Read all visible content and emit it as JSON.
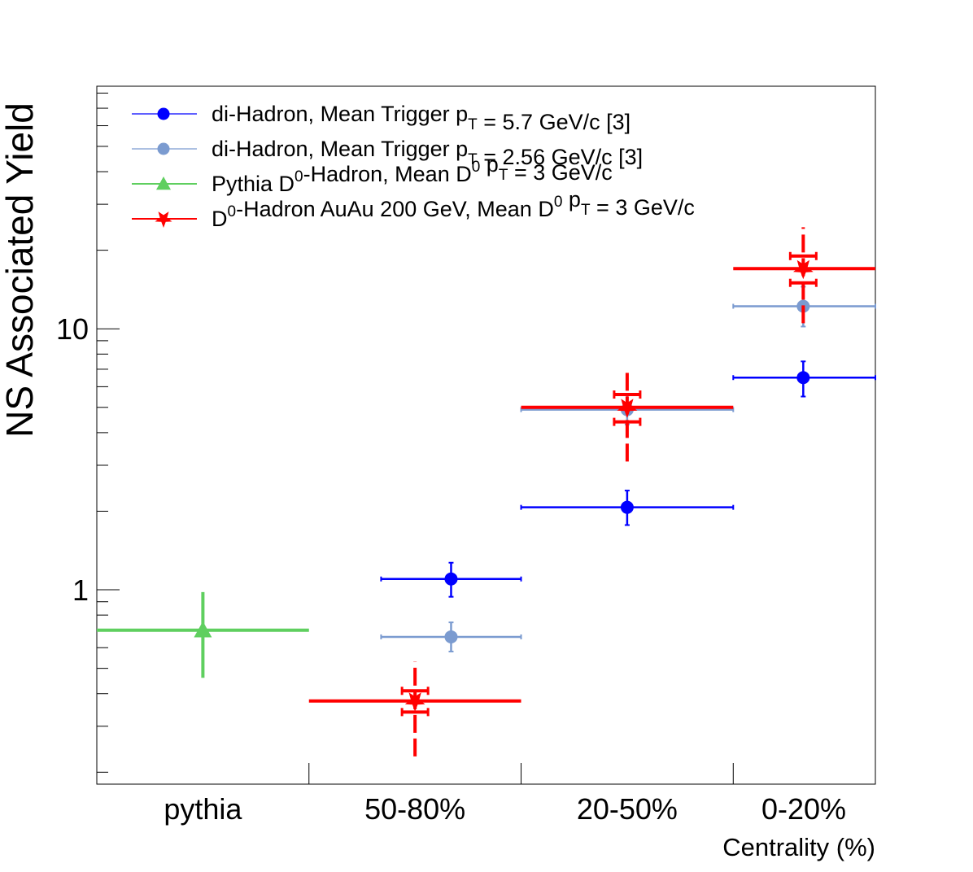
{
  "chart_data": {
    "type": "scatter",
    "title": "",
    "ylabel": "NS Associated Yield",
    "xlabel": "Centrality (%)",
    "yscale": "log",
    "ylim": [
      0.18,
      85
    ],
    "y_ticks": [
      {
        "value": 1,
        "label": "1"
      },
      {
        "value": 10,
        "label": "10"
      }
    ],
    "categories": [
      "pythia",
      "50-80%",
      "20-50%",
      "0-20%"
    ],
    "x_edges": [
      0,
      1,
      2,
      3,
      3.67
    ],
    "grid": false,
    "legend_position": "top-left",
    "series": [
      {
        "legend_parts": [
          {
            "t": "di-Hadron, Mean Trigger p"
          },
          {
            "t": "T",
            "sub": true
          },
          {
            "t": " =  5.7 GeV/c [3]"
          }
        ],
        "color": "#0000ff",
        "marker": "circle",
        "points": [
          {
            "category": "50-80%",
            "x": 1.67,
            "xlo": 1.34,
            "xhi": 2.0,
            "y": 1.1,
            "ylo": 0.94,
            "yhi": 1.27
          },
          {
            "category": "20-50%",
            "x": 2.5,
            "xlo": 2.0,
            "xhi": 3.0,
            "y": 2.07,
            "ylo": 1.77,
            "yhi": 2.4
          },
          {
            "category": "0-20%",
            "x": 3.33,
            "xlo": 3.0,
            "xhi": 3.67,
            "y": 6.5,
            "ylo": 5.5,
            "yhi": 7.5
          }
        ]
      },
      {
        "legend_parts": [
          {
            "t": "di-Hadron, Mean Trigger p"
          },
          {
            "t": "T",
            "sub": true
          },
          {
            "t": " =  2.56 GeV/c [3]"
          }
        ],
        "color": "#7b9bd0",
        "marker": "circle",
        "points": [
          {
            "category": "50-80%",
            "x": 1.67,
            "xlo": 1.34,
            "xhi": 2.0,
            "y": 0.66,
            "ylo": 0.58,
            "yhi": 0.75
          },
          {
            "category": "20-50%",
            "x": 2.5,
            "xlo": 2.0,
            "xhi": 3.0,
            "y": 4.9,
            "ylo": 4.3,
            "yhi": 5.6
          },
          {
            "category": "0-20%",
            "x": 3.33,
            "xlo": 3.0,
            "xhi": 3.67,
            "y": 12.2,
            "ylo": 10.2,
            "yhi": 14.5
          }
        ]
      },
      {
        "legend_parts": [
          {
            "t": "Pythia D"
          },
          {
            "t": "0",
            "sup": true
          },
          {
            "t": "-Hadron, Mean D"
          },
          {
            "t": "0",
            "sup": true
          },
          {
            "t": " p"
          },
          {
            "t": "T",
            "sub": true
          },
          {
            "t": " = 3 GeV/c"
          }
        ],
        "color": "#5fcf5f",
        "marker": "triangle",
        "points": [
          {
            "category": "pythia",
            "x": 0.5,
            "xlo": 0.0,
            "xhi": 1.0,
            "y": 0.7,
            "ylo": 0.46,
            "yhi": 0.98
          }
        ]
      },
      {
        "legend_parts": [
          {
            "t": "D"
          },
          {
            "t": "0",
            "sup": true
          },
          {
            "t": "-Hadron AuAu 200 GeV, Mean D"
          },
          {
            "t": "0",
            "sup": true
          },
          {
            "t": " p"
          },
          {
            "t": "T",
            "sub": true
          },
          {
            "t": " = 3 GeV/c"
          }
        ],
        "color": "#ff0000",
        "marker": "star",
        "points": [
          {
            "category": "50-80%",
            "x": 1.5,
            "xlo": 1.0,
            "xhi": 2.0,
            "y": 0.375,
            "ylo": 0.23,
            "yhi": 0.53,
            "syslo": 0.34,
            "syshi": 0.41
          },
          {
            "category": "20-50%",
            "x": 2.5,
            "xlo": 2.0,
            "xhi": 3.0,
            "y": 5.0,
            "ylo": 3.1,
            "yhi": 7.0,
            "syslo": 4.4,
            "syshi": 5.6
          },
          {
            "category": "0-20%",
            "x": 3.33,
            "xlo": 3.0,
            "xhi": 3.67,
            "y": 17.0,
            "ylo": 10.5,
            "yhi": 24.5,
            "syslo": 15.0,
            "syshi": 19.0
          }
        ]
      }
    ]
  }
}
